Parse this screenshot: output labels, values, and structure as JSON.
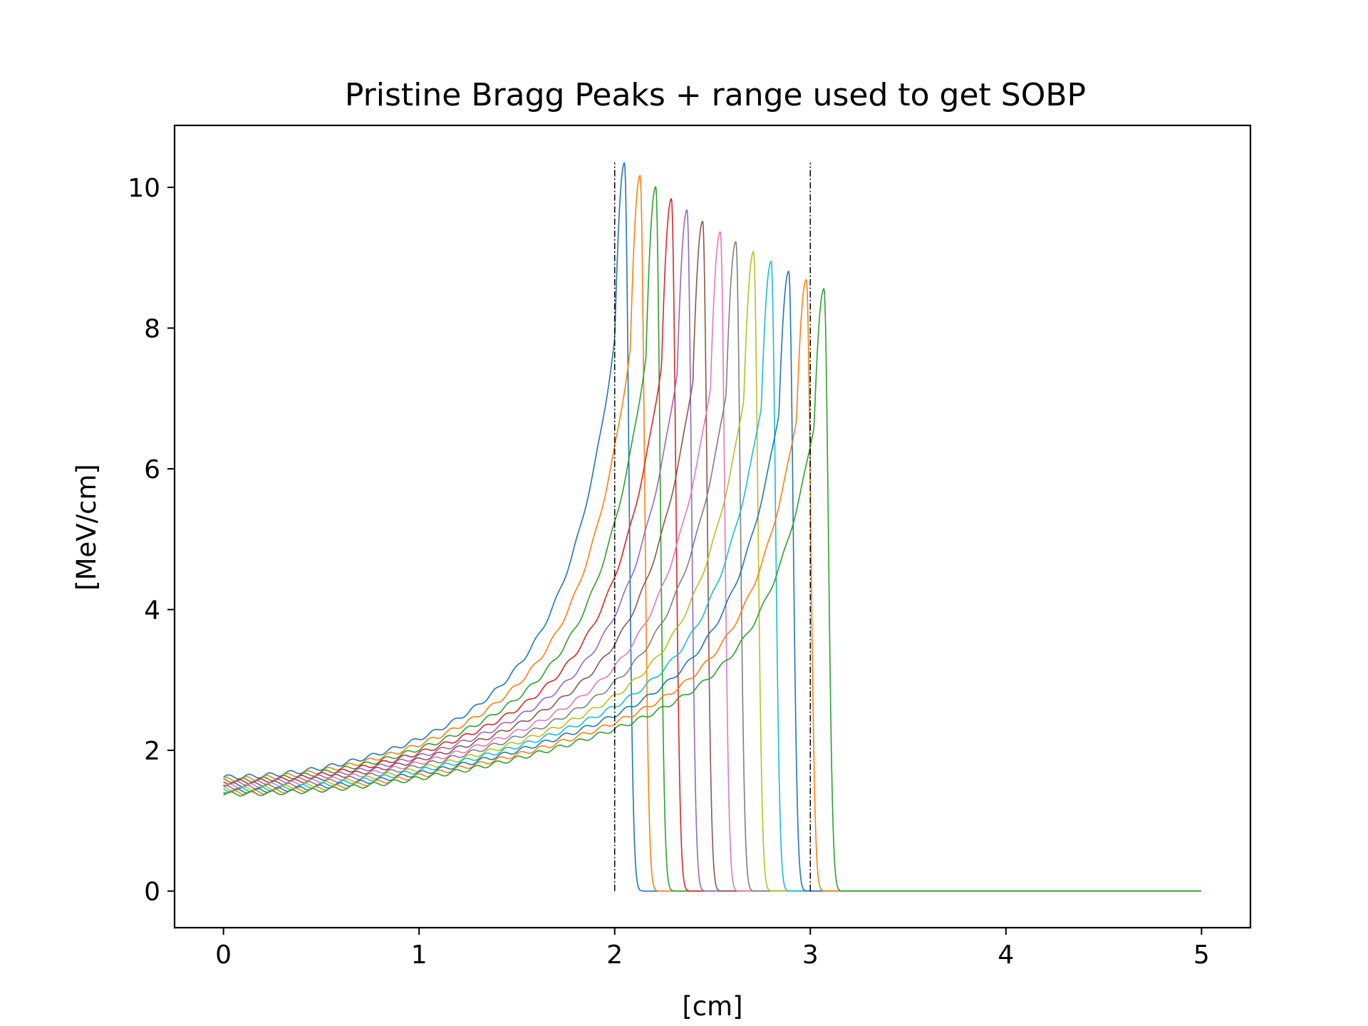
{
  "chart_data": {
    "type": "line",
    "title": "Pristine Bragg Peaks + range used to get SOBP",
    "xlabel": "[cm]",
    "ylabel": "[MeV/cm]",
    "xlim": [
      -0.25,
      5.25
    ],
    "ylim": [
      -0.52,
      10.88
    ],
    "xticks": [
      0,
      1,
      2,
      3,
      4,
      5
    ],
    "yticks": [
      0,
      2,
      4,
      6,
      8,
      10
    ],
    "xtick_labels": [
      "0",
      "1",
      "2",
      "3",
      "4",
      "5"
    ],
    "ytick_labels": [
      "0",
      "2",
      "4",
      "6",
      "8",
      "10"
    ],
    "grid": false,
    "legend": "none",
    "x_range": [
      0,
      5
    ],
    "range_markers": [
      {
        "x": 2.0,
        "y0": 0.0,
        "y1": 10.35,
        "color": "#000000",
        "style": "dash-dot"
      },
      {
        "x": 3.0,
        "y0": 0.0,
        "y1": 10.35,
        "color": "#000000",
        "style": "dash-dot"
      }
    ],
    "series": [
      {
        "peak_x": 2.05,
        "peak_y": 10.35,
        "entrance_y": 1.62,
        "color": "#1f77b4"
      },
      {
        "peak_x": 2.13,
        "peak_y": 10.17,
        "entrance_y": 1.59,
        "color": "#ff7f0e"
      },
      {
        "peak_x": 2.21,
        "peak_y": 10.01,
        "entrance_y": 1.57,
        "color": "#2ca02c"
      },
      {
        "peak_x": 2.29,
        "peak_y": 9.84,
        "entrance_y": 1.55,
        "color": "#d62728"
      },
      {
        "peak_x": 2.37,
        "peak_y": 9.68,
        "entrance_y": 1.53,
        "color": "#9467bd"
      },
      {
        "peak_x": 2.45,
        "peak_y": 9.52,
        "entrance_y": 1.51,
        "color": "#8c564b"
      },
      {
        "peak_x": 2.54,
        "peak_y": 9.37,
        "entrance_y": 1.49,
        "color": "#e377c2"
      },
      {
        "peak_x": 2.62,
        "peak_y": 9.23,
        "entrance_y": 1.47,
        "color": "#7f7f7f"
      },
      {
        "peak_x": 2.71,
        "peak_y": 9.09,
        "entrance_y": 1.45,
        "color": "#bcbd22"
      },
      {
        "peak_x": 2.8,
        "peak_y": 8.95,
        "entrance_y": 1.44,
        "color": "#17becf"
      },
      {
        "peak_x": 2.89,
        "peak_y": 8.81,
        "entrance_y": 1.42,
        "color": "#1f77b4"
      },
      {
        "peak_x": 2.98,
        "peak_y": 8.69,
        "entrance_y": 1.4,
        "color": "#ff7f0e"
      },
      {
        "peak_x": 3.07,
        "peak_y": 8.56,
        "entrance_y": 1.38,
        "color": "#2ca02c"
      }
    ]
  }
}
